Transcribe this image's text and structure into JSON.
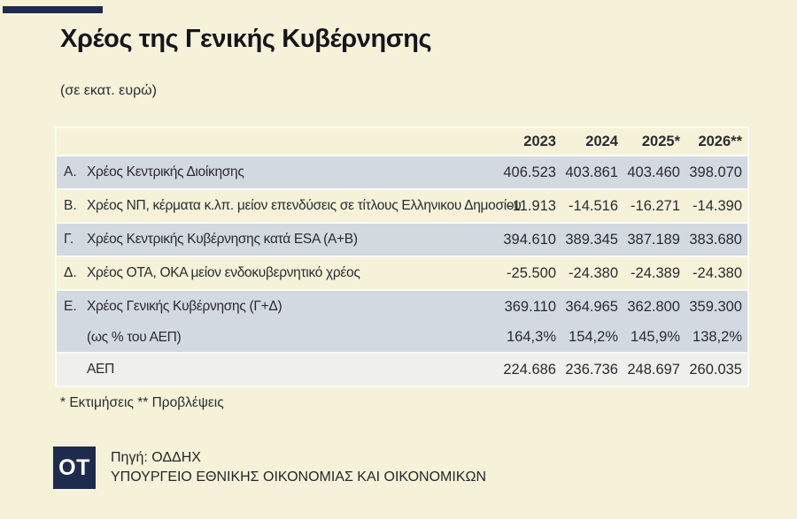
{
  "chart_data": {
    "type": "table",
    "title": "Χρέος της Γενικής Κυβέρνησης",
    "unit": "(σε εκατ. ευρώ)",
    "columns": [
      "2023",
      "2024",
      "2025*",
      "2026**"
    ],
    "rows": [
      {
        "letter": "Α.",
        "label": "Χρέος Κεντρικής Διοίκησης",
        "values": [
          "406.523",
          "403.861",
          "403.460",
          "398.070"
        ]
      },
      {
        "letter": "Β.",
        "label": "Χρέος ΝΠ, κέρματα κ.λπ. μείον επενδύσεις σε τίτλους Ελληνικου Δημοσίου",
        "values": [
          "-11.913",
          "-14.516",
          "-16.271",
          "-14.390"
        ]
      },
      {
        "letter": "Γ.",
        "label": "Χρέος Κεντρικής Κυβέρνησης κατά ESA (Α+Β)",
        "values": [
          "394.610",
          "389.345",
          "387.189",
          "383.680"
        ]
      },
      {
        "letter": "Δ.",
        "label": "Χρέος ΟΤΑ, ΟΚΑ μείον ενδοκυβερνητικό χρέος",
        "values": [
          "-25.500",
          "-24.380",
          "-24.389",
          "-24.380"
        ]
      },
      {
        "letter": "Ε.",
        "label": "Χρέος Γενικής Κυβέρνησης (Γ+Δ)",
        "values": [
          "369.110",
          "364.965",
          "362.800",
          "359.300"
        ]
      },
      {
        "letter": "",
        "label": "(ως % του ΑΕΠ)",
        "values": [
          "164,3%",
          "154,2%",
          "145,9%",
          "138,2%"
        ]
      },
      {
        "letter": "",
        "label": "ΑΕΠ",
        "values": [
          "224.686",
          "236.736",
          "248.697",
          "260.035"
        ]
      }
    ]
  },
  "footnote": "* Εκτιμήσεις ** Προβλέψεις",
  "source": {
    "logo": "OT",
    "line1": "Πηγή: ΟΔΔΗΧ",
    "line2": "ΥΠΟΥΡΓΕΙΟ ΕΘΝΙΚΗΣ ΟΙΚΟΝΟΜΙΑΣ ΚΑΙ ΟΙΚΟΝΟΜΙΚΩΝ"
  },
  "colors": {
    "background": "#f5f2d9",
    "row_blue": "#d3d9e1",
    "row_cream": "#f5f2d9",
    "row_gray": "#efefec",
    "navy": "#1f2b4e",
    "gap_white": "#fbfbf7"
  }
}
